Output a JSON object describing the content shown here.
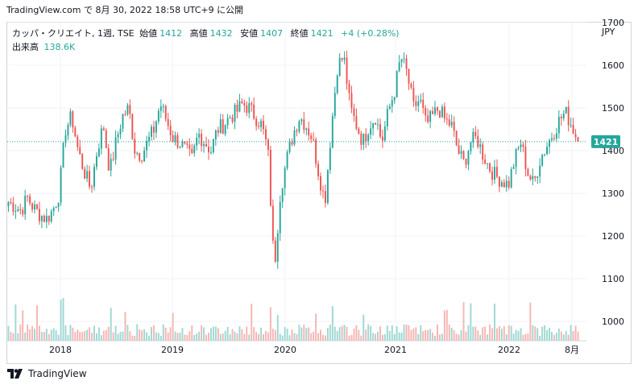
{
  "header": {
    "site": "TradingView.com",
    "posted_text": "で 8月 30, 2022 18:58 UTC+9 に公開"
  },
  "legend": {
    "symbol": "カッパ・クリエイト, 1週, TSE",
    "open_label": "始値",
    "open_value": "1412",
    "high_label": "高値",
    "high_value": "1432",
    "low_label": "安値",
    "low_value": "1407",
    "close_label": "終値",
    "close_value": "1421",
    "change": "+4 (+0.28%)",
    "volume_label": "出来高",
    "volume_value": "138.6K"
  },
  "currency": "JPY",
  "last_price_label": "1421",
  "footer": {
    "brand": "TradingView"
  },
  "colors": {
    "up": "#26a69a",
    "down": "#ef5350",
    "up_volume": "#9fd8d2",
    "down_volume": "#f6b5b3",
    "last_line": "#26a69a"
  },
  "chart_data": {
    "type": "candlestick",
    "y_ticks": [
      1000,
      1100,
      1200,
      1300,
      1400,
      1500,
      1600,
      1700
    ],
    "y_range": [
      955,
      1700
    ],
    "x_ticks": [
      "2018",
      "2019",
      "2020",
      "2021",
      "2022",
      "8月"
    ],
    "last_price": 1421,
    "anchor_closes": [
      1280,
      1270,
      1260,
      1290,
      1265,
      1250,
      1240,
      1260,
      1300,
      1450,
      1480,
      1400,
      1350,
      1310,
      1400,
      1460,
      1350,
      1420,
      1480,
      1500,
      1400,
      1390,
      1420,
      1450,
      1510,
      1470,
      1430,
      1420,
      1400,
      1380,
      1440,
      1420,
      1400,
      1450,
      1460,
      1480,
      1490,
      1510,
      1500,
      1480,
      1460,
      1400,
      1120,
      1310,
      1380,
      1440,
      1480,
      1460,
      1430,
      1350,
      1280,
      1450,
      1600,
      1620,
      1500,
      1460,
      1420,
      1460,
      1480,
      1420,
      1490,
      1540,
      1620,
      1580,
      1500,
      1520,
      1460,
      1480,
      1500,
      1470,
      1460,
      1400,
      1370,
      1420,
      1430,
      1390,
      1360,
      1340,
      1330,
      1320,
      1380,
      1420,
      1350,
      1320,
      1380,
      1410,
      1440,
      1470,
      1490,
      1460,
      1421
    ],
    "volume_range_k": [
      0,
      1000
    ]
  }
}
